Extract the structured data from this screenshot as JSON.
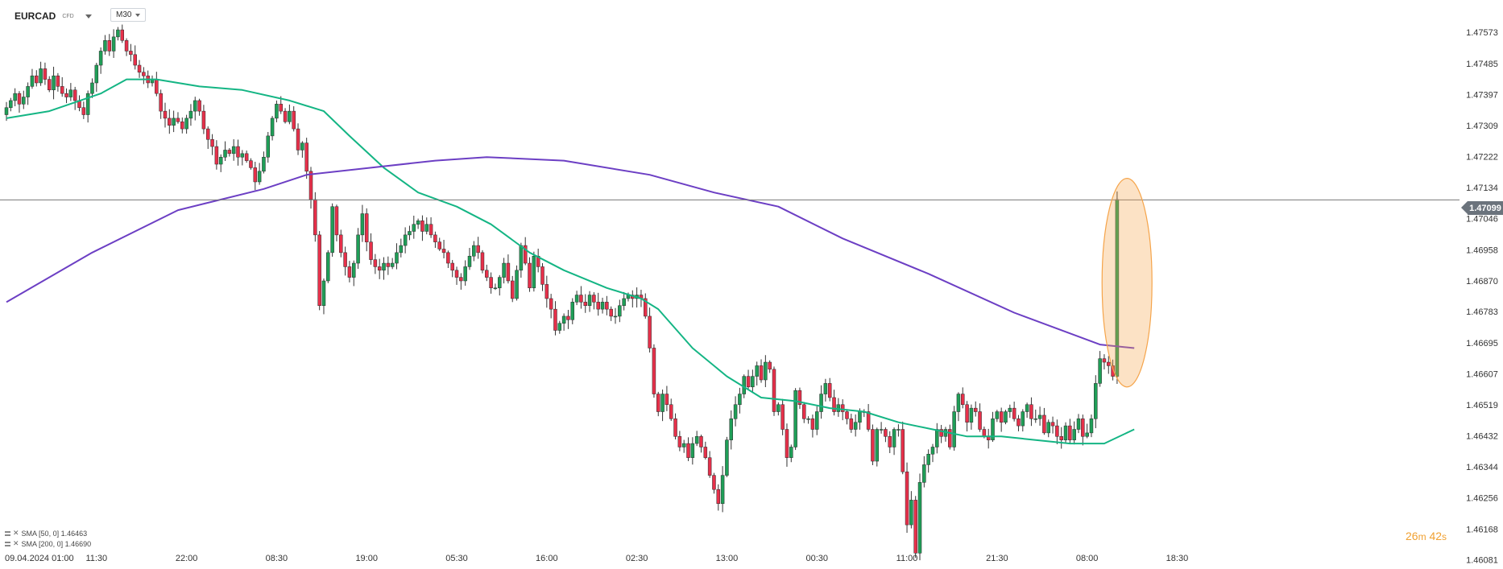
{
  "header": {
    "symbol": "EURCAD",
    "symbol_type": "CFD",
    "timeframe": "M30"
  },
  "indicators": [
    {
      "label": "SMA [50, 0] 1.46463",
      "color": "#14b584"
    },
    {
      "label": "SMA [200, 0] 1.46690",
      "color": "#6c3fc4"
    }
  ],
  "countdown": {
    "minutes": "26",
    "m": "m",
    "seconds": "42",
    "s": "s"
  },
  "current_price_tag": "1.47099",
  "colors": {
    "up": "#1f9e57",
    "down": "#e6304a",
    "sma50": "#14b584",
    "sma200": "#6c3fc4",
    "highlight": "#f5a44a",
    "axis_text": "#333333"
  },
  "chart_data": {
    "type": "candlestick",
    "symbol": "EURCAD",
    "timeframe": "M30",
    "y_ticks": [
      1.47573,
      1.47485,
      1.47397,
      1.47309,
      1.47222,
      1.47134,
      1.47046,
      1.46958,
      1.4687,
      1.46783,
      1.46695,
      1.46607,
      1.46519,
      1.46432,
      1.46344,
      1.46256,
      1.46168,
      1.46081
    ],
    "y_tick_labels": [
      "1.47573",
      "1.47485",
      "1.47397",
      "1.47309",
      "1.47222",
      "1.47134",
      "1.47046",
      "1.46958",
      "1.46870",
      "1.46783",
      "1.46695",
      "1.46607",
      "1.46519",
      "1.46432",
      "1.46344",
      "1.46256",
      "1.46168",
      "1.46081"
    ],
    "ylim": [
      1.46071,
      1.47628
    ],
    "x_labels": [
      "09.04.2024 01:00",
      "11:30",
      "22:00",
      "08:30",
      "19:00",
      "05:30",
      "16:00",
      "02:30",
      "13:00",
      "00:30",
      "11:00",
      "21:30",
      "08:00",
      "18:30"
    ],
    "x_label_bar_index": [
      0,
      21,
      42,
      63,
      84,
      105,
      126,
      147,
      168,
      189,
      210,
      231,
      252,
      273
    ],
    "current_price": 1.47099,
    "highlighted_bar_index": 263,
    "closes": [
      1.4736,
      1.4738,
      1.474,
      1.4737,
      1.4739,
      1.4742,
      1.4745,
      1.4743,
      1.4747,
      1.4744,
      1.4741,
      1.4745,
      1.4742,
      1.474,
      1.4739,
      1.4741,
      1.4738,
      1.4736,
      1.4734,
      1.474,
      1.4743,
      1.4748,
      1.4752,
      1.4755,
      1.4752,
      1.4756,
      1.4758,
      1.4755,
      1.4752,
      1.4751,
      1.4748,
      1.4746,
      1.4745,
      1.4743,
      1.4744,
      1.474,
      1.4735,
      1.4733,
      1.4731,
      1.4733,
      1.4732,
      1.473,
      1.4733,
      1.4735,
      1.4738,
      1.4735,
      1.473,
      1.4727,
      1.4725,
      1.472,
      1.4722,
      1.4724,
      1.4723,
      1.4725,
      1.4722,
      1.4723,
      1.4721,
      1.4719,
      1.4715,
      1.4718,
      1.4722,
      1.4728,
      1.4733,
      1.4737,
      1.4735,
      1.4732,
      1.4735,
      1.473,
      1.4724,
      1.4726,
      1.4718,
      1.471,
      1.47,
      1.468,
      1.4687,
      1.4695,
      1.4708,
      1.47,
      1.4695,
      1.4691,
      1.4688,
      1.4692,
      1.47,
      1.4706,
      1.4698,
      1.4693,
      1.4691,
      1.469,
      1.4692,
      1.4691,
      1.4692,
      1.4695,
      1.4697,
      1.47,
      1.4701,
      1.4703,
      1.4704,
      1.4701,
      1.4703,
      1.47,
      1.4698,
      1.4696,
      1.4695,
      1.4692,
      1.469,
      1.4688,
      1.4687,
      1.4691,
      1.4694,
      1.4697,
      1.4695,
      1.469,
      1.4688,
      1.4685,
      1.4685,
      1.4688,
      1.4692,
      1.4687,
      1.4682,
      1.469,
      1.4697,
      1.4692,
      1.4685,
      1.4694,
      1.4691,
      1.4686,
      1.4682,
      1.4679,
      1.4673,
      1.4675,
      1.4677,
      1.4676,
      1.4681,
      1.4683,
      1.4681,
      1.468,
      1.4683,
      1.4681,
      1.4679,
      1.4681,
      1.4679,
      1.4677,
      1.4677,
      1.468,
      1.4682,
      1.4683,
      1.4682,
      1.4683,
      1.4682,
      1.4677,
      1.4668,
      1.4655,
      1.465,
      1.4655,
      1.4652,
      1.4648,
      1.4643,
      1.464,
      1.4641,
      1.4637,
      1.4641,
      1.4643,
      1.464,
      1.4637,
      1.4632,
      1.4628,
      1.4624,
      1.4632,
      1.4642,
      1.4648,
      1.4652,
      1.4655,
      1.466,
      1.4657,
      1.466,
      1.4663,
      1.4659,
      1.4664,
      1.4662,
      1.465,
      1.4652,
      1.4645,
      1.4637,
      1.464,
      1.4656,
      1.4652,
      1.4648,
      1.4648,
      1.4645,
      1.465,
      1.4655,
      1.4658,
      1.4654,
      1.465,
      1.4652,
      1.465,
      1.4648,
      1.4645,
      1.4647,
      1.465,
      1.465,
      1.4645,
      1.4636,
      1.4645,
      1.4645,
      1.4643,
      1.464,
      1.4645,
      1.4645,
      1.4633,
      1.4618,
      1.4625,
      1.461,
      1.463,
      1.4635,
      1.4638,
      1.464,
      1.4645,
      1.4643,
      1.4645,
      1.464,
      1.465,
      1.4655,
      1.4652,
      1.4647,
      1.4651,
      1.465,
      1.4645,
      1.4643,
      1.4642,
      1.4648,
      1.465,
      1.4647,
      1.465,
      1.4651,
      1.4648,
      1.4646,
      1.465,
      1.4652,
      1.4648,
      1.4648,
      1.4649,
      1.4644,
      1.4647,
      1.4646,
      1.4643,
      1.4642,
      1.4646,
      1.4642,
      1.4645,
      1.4648,
      1.4643,
      1.4644,
      1.4648,
      1.4658,
      1.4665,
      1.4664,
      1.4663,
      1.466,
      1.471
    ],
    "series": [
      {
        "name": "SMA [50, 0]",
        "last_value": 1.46463,
        "points": [
          [
            0,
            1.4733
          ],
          [
            10,
            1.4735
          ],
          [
            22,
            1.474
          ],
          [
            28,
            1.4744
          ],
          [
            35,
            1.4744
          ],
          [
            45,
            1.4742
          ],
          [
            55,
            1.4741
          ],
          [
            66,
            1.4738
          ],
          [
            74,
            1.4735
          ],
          [
            80,
            1.4728
          ],
          [
            88,
            1.4719
          ],
          [
            96,
            1.4712
          ],
          [
            105,
            1.4708
          ],
          [
            113,
            1.4703
          ],
          [
            122,
            1.4695
          ],
          [
            130,
            1.469
          ],
          [
            140,
            1.4685
          ],
          [
            148,
            1.4682
          ],
          [
            152,
            1.4679
          ],
          [
            160,
            1.4668
          ],
          [
            168,
            1.466
          ],
          [
            176,
            1.4654
          ],
          [
            184,
            1.4653
          ],
          [
            192,
            1.4651
          ],
          [
            200,
            1.465
          ],
          [
            208,
            1.4647
          ],
          [
            216,
            1.4645
          ],
          [
            224,
            1.4643
          ],
          [
            232,
            1.4643
          ],
          [
            240,
            1.4642
          ],
          [
            248,
            1.4641
          ],
          [
            256,
            1.4641
          ],
          [
            263,
            1.4645
          ]
        ]
      },
      {
        "name": "SMA [200, 0]",
        "last_value": 1.4669,
        "points": [
          [
            0,
            1.4681
          ],
          [
            20,
            1.4695
          ],
          [
            40,
            1.4707
          ],
          [
            60,
            1.4713
          ],
          [
            70,
            1.4717
          ],
          [
            85,
            1.4719
          ],
          [
            100,
            1.4721
          ],
          [
            112,
            1.4722
          ],
          [
            130,
            1.4721
          ],
          [
            150,
            1.4717
          ],
          [
            165,
            1.4712
          ],
          [
            180,
            1.4708
          ],
          [
            195,
            1.4699
          ],
          [
            215,
            1.4689
          ],
          [
            235,
            1.4678
          ],
          [
            255,
            1.4669
          ],
          [
            263,
            1.4668
          ]
        ]
      }
    ],
    "grid": false
  }
}
